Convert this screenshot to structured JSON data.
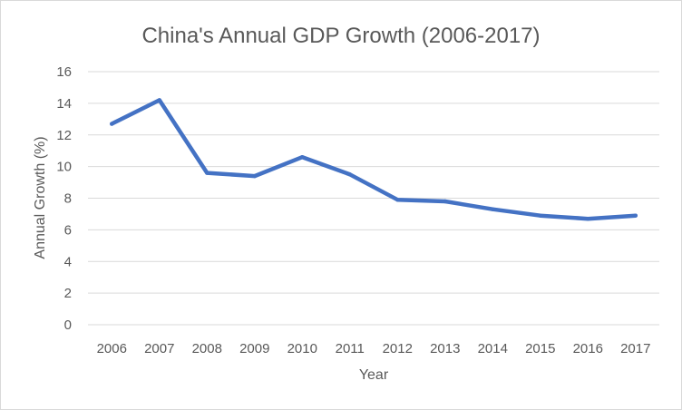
{
  "chart_data": {
    "type": "line",
    "title": "China's Annual GDP Growth (2006-2017)",
    "xlabel": "Year",
    "ylabel": "Annual Growth (%)",
    "categories": [
      "2006",
      "2007",
      "2008",
      "2009",
      "2010",
      "2011",
      "2012",
      "2013",
      "2014",
      "2015",
      "2016",
      "2017"
    ],
    "series": [
      {
        "values": [
          12.7,
          14.2,
          9.6,
          9.4,
          10.6,
          9.5,
          7.9,
          7.8,
          7.3,
          6.9,
          6.7,
          6.9
        ],
        "color": "#4472c4"
      }
    ],
    "ylim": [
      0,
      16
    ],
    "yticks": [
      0,
      2,
      4,
      6,
      8,
      10,
      12,
      14,
      16
    ],
    "grid": true,
    "legend": "none"
  }
}
